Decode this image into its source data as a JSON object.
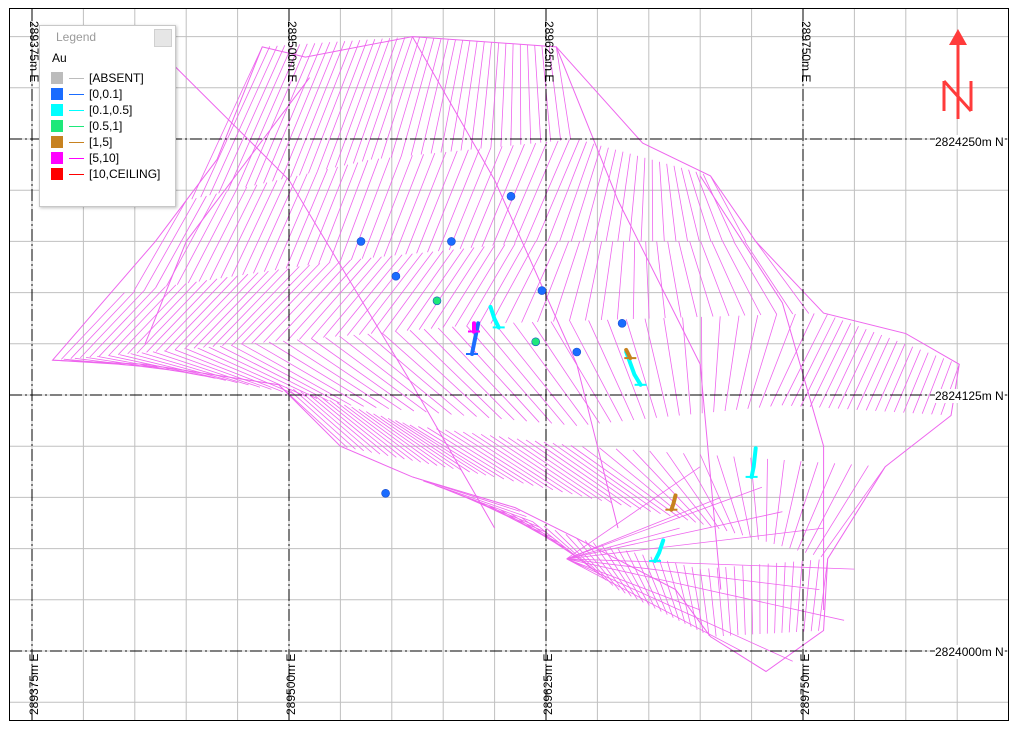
{
  "legend": {
    "title": "Legend",
    "field": "Au",
    "items": [
      {
        "label": "[ABSENT]",
        "color": "#bcbcbc"
      },
      {
        "label": "[0,0.1]",
        "color": "#1a6cff"
      },
      {
        "label": "[0.1,0.5]",
        "color": "#00ffff"
      },
      {
        "label": "[0.5,1]",
        "color": "#1ee87a"
      },
      {
        "label": "[1,5]",
        "color": "#c78220"
      },
      {
        "label": "[5,10]",
        "color": "#ff00ff"
      },
      {
        "label": "[10,CEILING]",
        "color": "#ff0000"
      }
    ]
  },
  "axes": {
    "easting_top": [
      "289375m E",
      "289500m E",
      "289625m E",
      "289750m E"
    ],
    "easting_bottom": [
      "289375m E",
      "289500m E",
      "289625m E",
      "289750m E"
    ],
    "northing_right": [
      "2824250m N",
      "2824125m N",
      "2824000m N"
    ]
  },
  "north_arrow": {
    "letter": "N",
    "color": "#ff3b3b"
  },
  "colors": {
    "wireframe": "#ee66ee",
    "grid_minor": "#c0c0c0",
    "grid_major": "#000000"
  },
  "samples": [
    {
      "id": "s1",
      "e": 289535,
      "n": 2824200,
      "class": 1
    },
    {
      "id": "s2",
      "e": 289552,
      "n": 2824183,
      "class": 1
    },
    {
      "id": "s3",
      "e": 289547,
      "n": 2824077,
      "class": 1
    },
    {
      "id": "s4",
      "e": 289608,
      "n": 2824222,
      "class": 1
    },
    {
      "id": "s5",
      "e": 289579,
      "n": 2824200,
      "class": 1
    },
    {
      "id": "s6",
      "e": 289623,
      "n": 2824176,
      "class": 1
    },
    {
      "id": "s7",
      "e": 289640,
      "n": 2824146,
      "class": 1
    },
    {
      "id": "s8",
      "e": 289662,
      "n": 2824160,
      "class": 1
    },
    {
      "id": "s9",
      "e": 289572,
      "n": 2824171,
      "class": 3
    },
    {
      "id": "s10",
      "e": 289620,
      "n": 2824151,
      "class": 3
    }
  ],
  "traces": [
    {
      "id": "t1",
      "class": 1,
      "pts": [
        [
          289592,
          2824160
        ],
        [
          289590,
          2824150
        ],
        [
          289589,
          2824145
        ]
      ]
    },
    {
      "id": "t2",
      "class": 2,
      "pts": [
        [
          289598,
          2824168
        ],
        [
          289600,
          2824162
        ],
        [
          289602,
          2824158
        ]
      ]
    },
    {
      "id": "t3",
      "class": 2,
      "pts": [
        [
          289664,
          2824146
        ],
        [
          289668,
          2824135
        ],
        [
          289671,
          2824130
        ]
      ]
    },
    {
      "id": "t4",
      "class": 4,
      "pts": [
        [
          289664,
          2824147
        ],
        [
          289666,
          2824143
        ]
      ]
    },
    {
      "id": "t5",
      "class": 2,
      "pts": [
        [
          289727,
          2824099
        ],
        [
          289726,
          2824090
        ],
        [
          289725,
          2824085
        ]
      ]
    },
    {
      "id": "t6",
      "class": 4,
      "pts": [
        [
          289688,
          2824076
        ],
        [
          289687,
          2824072
        ],
        [
          289686,
          2824069
        ]
      ]
    },
    {
      "id": "t7",
      "class": 2,
      "pts": [
        [
          289682,
          2824054
        ],
        [
          289680,
          2824048
        ],
        [
          289678,
          2824044
        ]
      ]
    },
    {
      "id": "t8",
      "class": 5,
      "pts": [
        [
          289590,
          2824160
        ],
        [
          289590,
          2824156
        ]
      ]
    }
  ]
}
